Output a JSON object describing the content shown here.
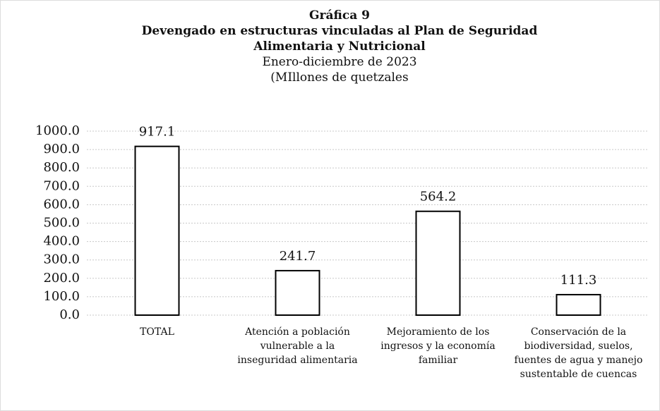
{
  "chart_data": {
    "type": "bar",
    "title": [
      "Gráfica 9",
      "Devengado en estructuras vinculadas al Plan de Seguridad Alimentaria y Nutricional"
    ],
    "subtitle": [
      "Enero-diciembre de 2023",
      "(MIllones de quetzales"
    ],
    "categories": [
      "TOTAL",
      "Atención a población vulnerable a la inseguridad alimentaria",
      "Mejoramiento de los ingresos y la economía familiar",
      "Conservación de la biodiversidad, suelos, fuentes de agua y manejo sustentable de cuencas"
    ],
    "values": [
      917.1,
      241.7,
      564.2,
      111.3
    ],
    "color": "#ffffff",
    "edgecolor": "#000000",
    "ylim": [
      0,
      1000
    ],
    "yticks": [
      {
        "value": 0,
        "label": "0.0"
      },
      {
        "value": 100,
        "label": "100.0"
      },
      {
        "value": 200,
        "label": "200.0"
      },
      {
        "value": 300,
        "label": "300.0"
      },
      {
        "value": 400,
        "label": "400.0"
      },
      {
        "value": 500,
        "label": "500.0"
      },
      {
        "value": 600,
        "label": "600.0"
      },
      {
        "value": 700,
        "label": "700.0"
      },
      {
        "value": 800,
        "label": "800.0"
      },
      {
        "value": 900,
        "label": "900.0"
      },
      {
        "value": 1000,
        "label": "1000.0"
      }
    ],
    "grid": true
  }
}
